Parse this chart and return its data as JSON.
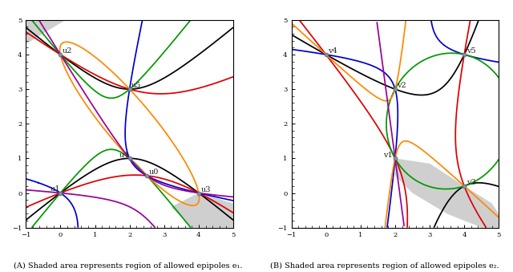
{
  "xlim": [
    -1,
    5
  ],
  "ylim": [
    -1,
    5
  ],
  "figsize": [
    6.4,
    3.39
  ],
  "dpi": 100,
  "caption_A": "(A) Shaded area represents region of allowed epipoles e₁.",
  "caption_B": "(B) Shaded area represents region of allowed epipoles e₂.",
  "points_A": {
    "u0": [
      2.5,
      0.5
    ],
    "u1": [
      0.0,
      0.0
    ],
    "u2": [
      0.0,
      4.0
    ],
    "u3": [
      4.0,
      0.0
    ],
    "u4": [
      2.0,
      1.0
    ],
    "u5": [
      2.0,
      3.0
    ]
  },
  "points_B": {
    "v1": [
      2.0,
      1.0
    ],
    "v2": [
      2.0,
      3.0
    ],
    "v3": [
      4.0,
      0.2
    ],
    "v4": [
      0.0,
      4.0
    ],
    "v5": [
      4.0,
      4.0
    ]
  },
  "bg_color": "#ffffff",
  "col_black": "#000000",
  "col_red": "#dd0000",
  "col_blue": "#0000cc",
  "col_green": "#009900",
  "col_orange": "#ff8800",
  "col_purple": "#990099",
  "point_color": "#7799aa",
  "shade_color": "#c0c0c0",
  "shade_alpha": 0.75,
  "lw": 1.25,
  "grid_n": 700,
  "label_fontsize": 7,
  "caption_fontsize": 7
}
